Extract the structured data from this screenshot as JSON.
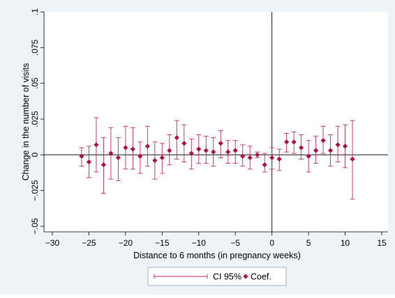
{
  "chart_data": {
    "type": "scatter",
    "xlabel": "Distance to 6 months (in pregnancy weeks)",
    "ylabel": "Change in the number of visits",
    "xlim": [
      -30,
      15
    ],
    "ylim": [
      -0.05,
      0.1
    ],
    "x_ticks": [
      -30,
      -25,
      -20,
      -15,
      -10,
      -5,
      0,
      5,
      10,
      15
    ],
    "x_tick_labels": [
      "−30",
      "−25",
      "−20",
      "−15",
      "−10",
      "−5",
      "0",
      "5",
      "10",
      "15"
    ],
    "y_ticks": [
      -0.05,
      -0.025,
      0,
      0.025,
      0.05,
      0.075,
      0.1
    ],
    "y_tick_labels": [
      "−.05",
      "−.025",
      "0",
      ".025",
      ".05",
      ".075",
      ".1"
    ],
    "reference_lines": {
      "horizontal_y": 0,
      "vertical_x": 0
    },
    "legend_position": "bottom",
    "series": [
      {
        "name": "CI 95%",
        "kind": "errorbar",
        "color": "#c6285a",
        "points": [
          {
            "x": -26,
            "lo": -0.008,
            "hi": 0.005
          },
          {
            "x": -25,
            "lo": -0.016,
            "hi": 0.006
          },
          {
            "x": -24,
            "lo": -0.012,
            "hi": 0.026
          },
          {
            "x": -23,
            "lo": -0.027,
            "hi": 0.012
          },
          {
            "x": -22,
            "lo": -0.017,
            "hi": 0.019
          },
          {
            "x": -21,
            "lo": -0.018,
            "hi": 0.012
          },
          {
            "x": -20,
            "lo": -0.01,
            "hi": 0.02
          },
          {
            "x": -19,
            "lo": -0.01,
            "hi": 0.019
          },
          {
            "x": -18,
            "lo": -0.013,
            "hi": 0.009
          },
          {
            "x": -17,
            "lo": -0.008,
            "hi": 0.02
          },
          {
            "x": -16,
            "lo": -0.017,
            "hi": 0.009
          },
          {
            "x": -15,
            "lo": -0.013,
            "hi": 0.008
          },
          {
            "x": -14,
            "lo": -0.007,
            "hi": 0.014
          },
          {
            "x": -13,
            "lo": -0.003,
            "hi": 0.024
          },
          {
            "x": -12,
            "lo": -0.005,
            "hi": 0.021
          },
          {
            "x": -11,
            "lo": -0.01,
            "hi": 0.011
          },
          {
            "x": -10,
            "lo": -0.006,
            "hi": 0.014
          },
          {
            "x": -9,
            "lo": -0.006,
            "hi": 0.013
          },
          {
            "x": -8,
            "lo": -0.008,
            "hi": 0.012
          },
          {
            "x": -7,
            "lo": -0.002,
            "hi": 0.017
          },
          {
            "x": -6,
            "lo": -0.006,
            "hi": 0.01
          },
          {
            "x": -5,
            "lo": -0.006,
            "hi": 0.01
          },
          {
            "x": -4,
            "lo": -0.008,
            "hi": 0.007
          },
          {
            "x": -3,
            "lo": -0.01,
            "hi": 0.006
          },
          {
            "x": -2,
            "lo": -0.002,
            "hi": 0.002
          },
          {
            "x": -1,
            "lo": -0.012,
            "hi": 0.001
          },
          {
            "x": 0,
            "lo": -0.01,
            "hi": 0.005
          },
          {
            "x": 1,
            "lo": -0.011,
            "hi": 0.004
          },
          {
            "x": 2,
            "lo": 0.002,
            "hi": 0.015
          },
          {
            "x": 3,
            "lo": 0.001,
            "hi": 0.016
          },
          {
            "x": 4,
            "lo": -0.003,
            "hi": 0.014
          },
          {
            "x": 5,
            "lo": -0.012,
            "hi": 0.01
          },
          {
            "x": 6,
            "lo": -0.006,
            "hi": 0.013
          },
          {
            "x": 7,
            "lo": 0.001,
            "hi": 0.02
          },
          {
            "x": 8,
            "lo": -0.008,
            "hi": 0.014
          },
          {
            "x": 9,
            "lo": -0.005,
            "hi": 0.02
          },
          {
            "x": 10,
            "lo": -0.009,
            "hi": 0.021
          },
          {
            "x": 11,
            "lo": -0.031,
            "hi": 0.024
          }
        ]
      },
      {
        "name": "Coef.",
        "kind": "points",
        "marker": "diamond",
        "color": "#b0103f",
        "x": [
          -26,
          -25,
          -24,
          -23,
          -22,
          -21,
          -20,
          -19,
          -18,
          -17,
          -16,
          -15,
          -14,
          -13,
          -12,
          -11,
          -10,
          -9,
          -8,
          -7,
          -6,
          -5,
          -4,
          -3,
          -2,
          -1,
          0,
          1,
          2,
          3,
          4,
          5,
          6,
          7,
          8,
          9,
          10,
          11
        ],
        "y": [
          -0.001,
          -0.005,
          0.007,
          -0.007,
          0.001,
          -0.002,
          0.005,
          0.004,
          -0.001,
          0.006,
          -0.004,
          -0.002,
          0.003,
          0.012,
          0.008,
          0.001,
          0.004,
          0.003,
          0.002,
          0.008,
          0.002,
          0.003,
          -0.001,
          -0.002,
          0.0,
          -0.007,
          -0.002,
          -0.003,
          0.009,
          0.009,
          0.005,
          -0.001,
          0.003,
          0.01,
          0.003,
          0.007,
          0.006,
          -0.003
        ]
      }
    ]
  }
}
